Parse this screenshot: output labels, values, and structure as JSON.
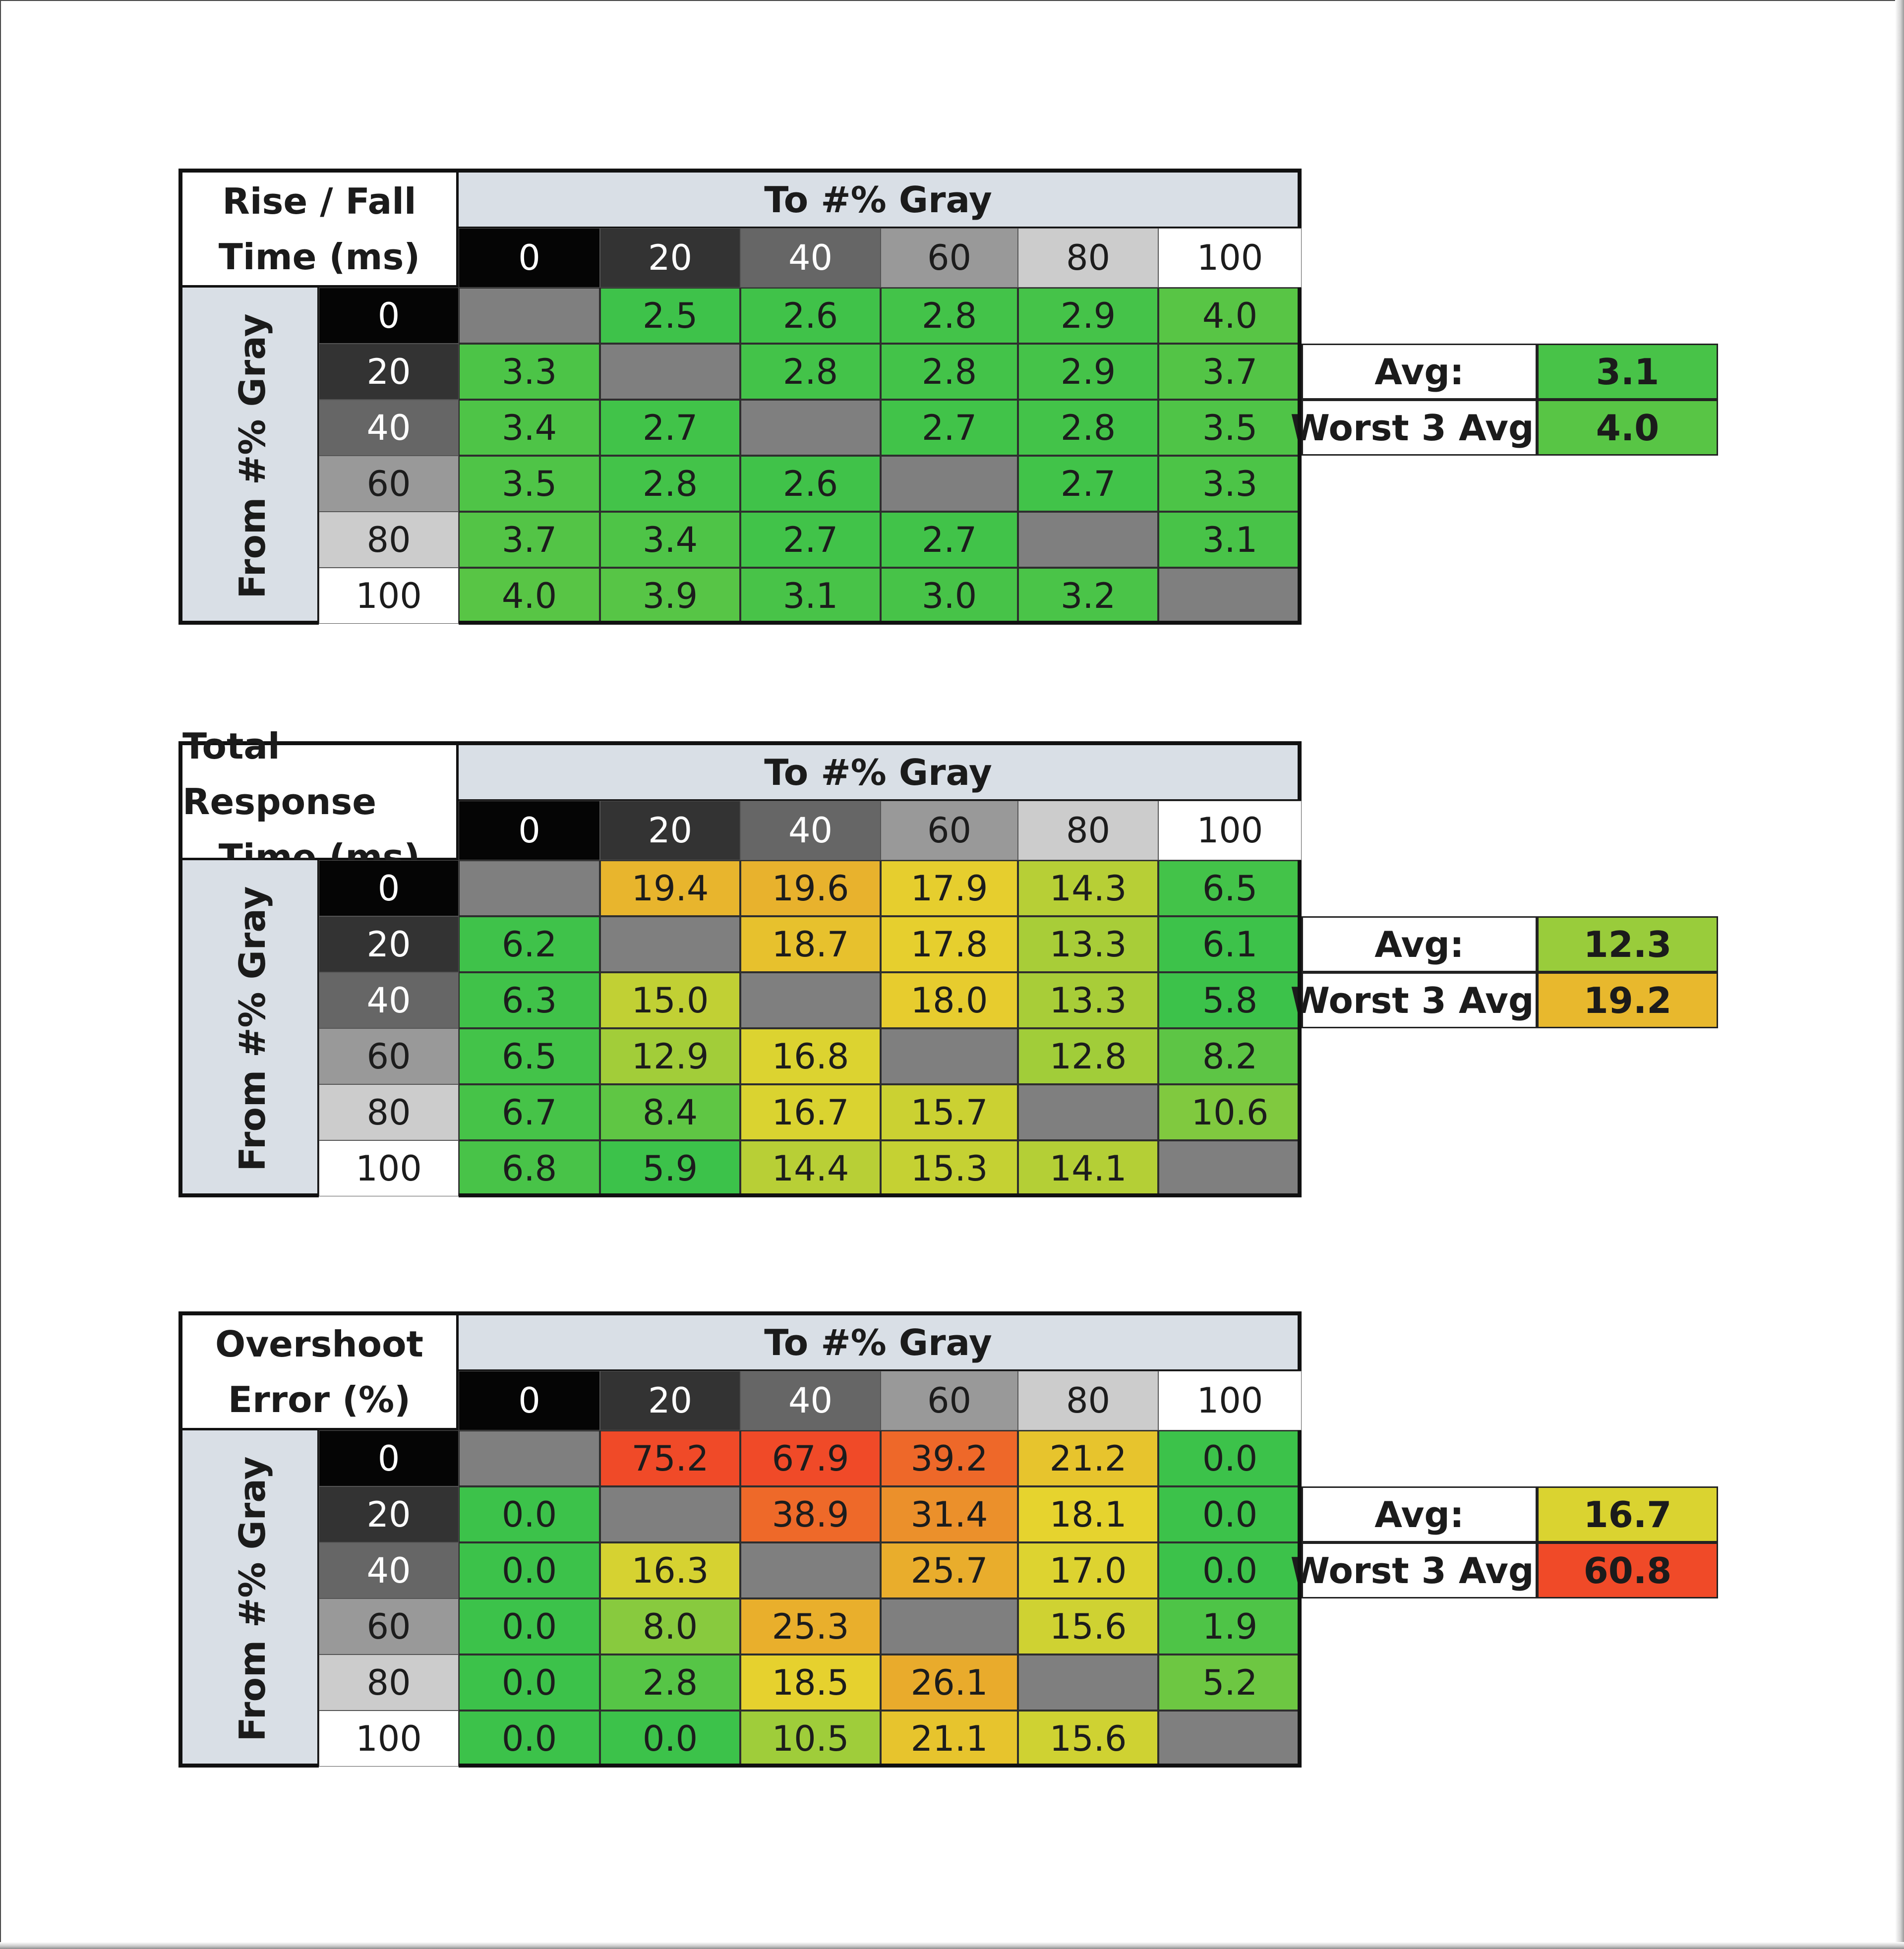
{
  "chart_data": [
    {
      "type": "heatmap",
      "title": [
        "Rise / Fall",
        "Time (ms)"
      ],
      "column_header": "To #% Gray",
      "row_header": "From #% Gray",
      "x": [
        0,
        20,
        40,
        60,
        80,
        100
      ],
      "y": [
        0,
        20,
        40,
        60,
        80,
        100
      ],
      "values": [
        [
          null,
          2.5,
          2.6,
          2.8,
          2.9,
          4.0
        ],
        [
          3.3,
          null,
          2.8,
          2.8,
          2.9,
          3.7
        ],
        [
          3.4,
          2.7,
          null,
          2.7,
          2.8,
          3.5
        ],
        [
          3.5,
          2.8,
          2.6,
          null,
          2.7,
          3.3
        ],
        [
          3.7,
          3.4,
          2.7,
          2.7,
          null,
          3.1
        ],
        [
          4.0,
          3.9,
          3.1,
          3.0,
          3.2,
          null
        ]
      ],
      "summary": [
        {
          "label": "Avg:",
          "value": "3.1"
        },
        {
          "label": "Worst 3 Avg:",
          "value": "4.0"
        }
      ]
    },
    {
      "type": "heatmap",
      "title": [
        "Total Response",
        "Time (ms)"
      ],
      "column_header": "To #% Gray",
      "row_header": "From #% Gray",
      "x": [
        0,
        20,
        40,
        60,
        80,
        100
      ],
      "y": [
        0,
        20,
        40,
        60,
        80,
        100
      ],
      "values": [
        [
          null,
          19.4,
          19.6,
          17.9,
          14.3,
          6.5
        ],
        [
          6.2,
          null,
          18.7,
          17.8,
          13.3,
          6.1
        ],
        [
          6.3,
          15.0,
          null,
          18.0,
          13.3,
          5.8
        ],
        [
          6.5,
          12.9,
          16.8,
          null,
          12.8,
          8.2
        ],
        [
          6.7,
          8.4,
          16.7,
          15.7,
          null,
          10.6
        ],
        [
          6.8,
          5.9,
          14.4,
          15.3,
          14.1,
          null
        ]
      ],
      "summary": [
        {
          "label": "Avg:",
          "value": "12.3"
        },
        {
          "label": "Worst 3 Avg:",
          "value": "19.2"
        }
      ]
    },
    {
      "type": "heatmap",
      "title": [
        "Overshoot",
        "Error (%)"
      ],
      "column_header": "To #% Gray",
      "row_header": "From #% Gray",
      "x": [
        0,
        20,
        40,
        60,
        80,
        100
      ],
      "y": [
        0,
        20,
        40,
        60,
        80,
        100
      ],
      "values": [
        [
          null,
          75.2,
          67.9,
          39.2,
          21.2,
          0.0
        ],
        [
          0.0,
          null,
          38.9,
          31.4,
          18.1,
          0.0
        ],
        [
          0.0,
          16.3,
          null,
          25.7,
          17.0,
          0.0
        ],
        [
          0.0,
          8.0,
          25.3,
          null,
          15.6,
          1.9
        ],
        [
          0.0,
          2.8,
          18.5,
          26.1,
          null,
          5.2
        ],
        [
          0.0,
          0.0,
          10.5,
          21.1,
          15.6,
          null
        ]
      ],
      "summary": [
        {
          "label": "Avg:",
          "value": "16.7"
        },
        {
          "label": "Worst 3 Avg:",
          "value": "60.8"
        }
      ]
    }
  ],
  "colors": {
    "gray_levels": {
      "0": {
        "bg": "#050505",
        "fg": "#ffffff"
      },
      "20": {
        "bg": "#333333",
        "fg": "#ffffff"
      },
      "40": {
        "bg": "#666666",
        "fg": "#ffffff"
      },
      "60": {
        "bg": "#999999",
        "fg": "#1c1c1c"
      },
      "80": {
        "bg": "#cccccc",
        "fg": "#1c1c1c"
      },
      "100": {
        "bg": "#ffffff",
        "fg": "#1c1c1c"
      }
    },
    "diagonal": "#7f7f7f",
    "header": "#d9dfe6",
    "scale": {
      "green": "#3cc24a",
      "lime": "#9ccc3c",
      "yellow": "#e6d42e",
      "orange": "#f0a030",
      "red": "#f04a28"
    }
  }
}
